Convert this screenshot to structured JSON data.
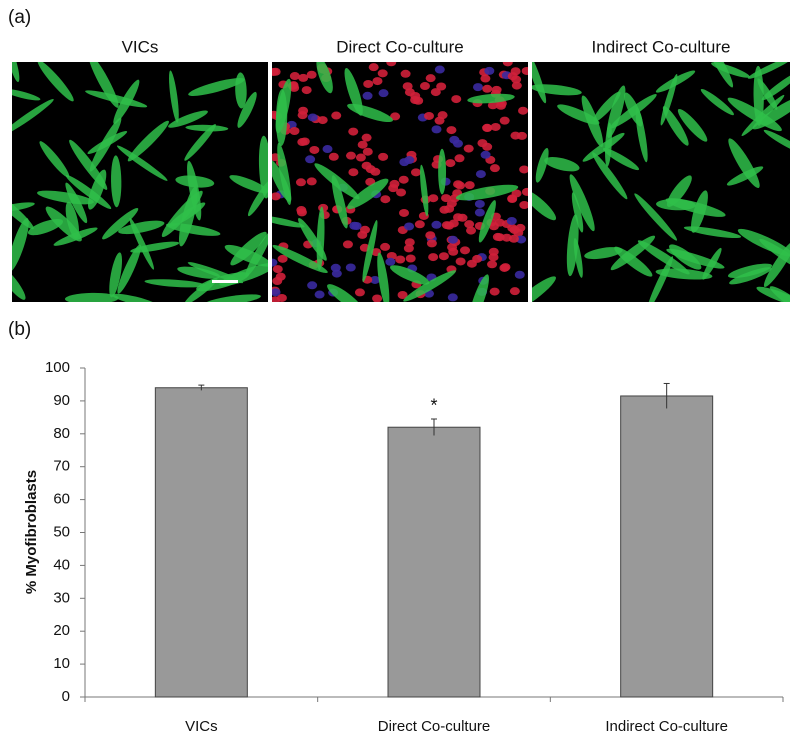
{
  "image_panel": {
    "label": "(a)",
    "titles": [
      "VICs",
      "Direct Co-culture",
      "Indirect Co-culture"
    ]
  },
  "chart_data": {
    "type": "bar",
    "panel_label": "(b)",
    "ylabel": "% Myofibroblasts",
    "categories": [
      "VICs",
      "Direct Co-culture",
      "Indirect Co-culture"
    ],
    "values": [
      94,
      82,
      91.5
    ],
    "errors": [
      0.8,
      2.5,
      3.8
    ],
    "color": "#999999",
    "annotations": [
      {
        "category": 1,
        "text": "*"
      }
    ],
    "ylim": [
      0,
      100
    ],
    "yticks": [
      0,
      10,
      20,
      30,
      40,
      50,
      60,
      70,
      80,
      90,
      100
    ],
    "grid": false
  }
}
